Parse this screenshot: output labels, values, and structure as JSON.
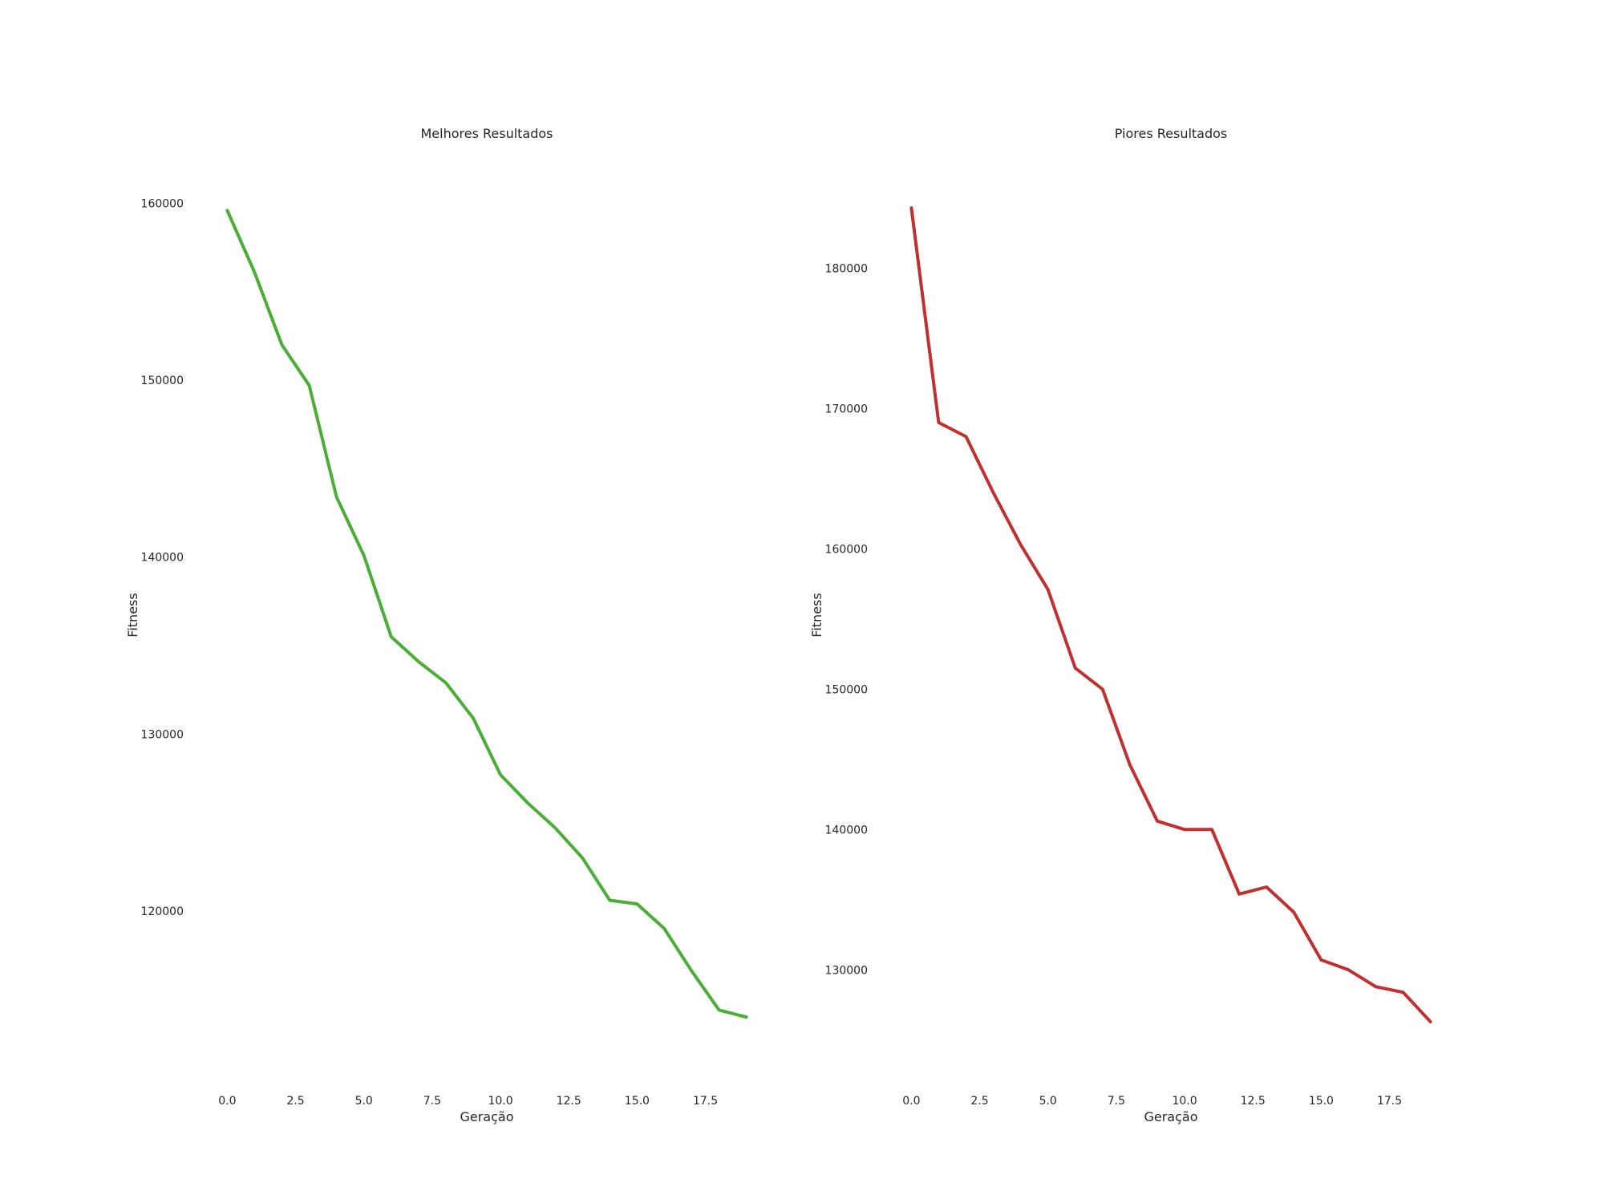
{
  "chart_data": [
    {
      "type": "line",
      "title": "Melhores Resultados",
      "xlabel": "Geração",
      "ylabel": "Fitness",
      "xlim": [
        -0.95,
        19.95
      ],
      "ylim": [
        111200,
        162200
      ],
      "xticks": [
        0.0,
        2.5,
        5.0,
        7.5,
        10.0,
        12.5,
        15.0,
        17.5
      ],
      "xtick_labels": [
        "0.0",
        "2.5",
        "5.0",
        "7.5",
        "10.0",
        "12.5",
        "15.0",
        "17.5"
      ],
      "yticks": [
        120000,
        130000,
        140000,
        150000,
        160000
      ],
      "ytick_labels": [
        "120000",
        "130000",
        "140000",
        "150000",
        "160000"
      ],
      "grid": false,
      "color": "#4aae36",
      "series": [
        {
          "name": "Melhores",
          "x": [
            0,
            1,
            2,
            3,
            4,
            5,
            6,
            7,
            8,
            9,
            10,
            11,
            12,
            13,
            14,
            15,
            16,
            17,
            18,
            19
          ],
          "values": [
            159600,
            156100,
            152000,
            149700,
            143400,
            140100,
            135500,
            134100,
            132900,
            130900,
            127700,
            126100,
            124700,
            123000,
            120600,
            120400,
            119000,
            116600,
            114400,
            114000
          ]
        }
      ]
    },
    {
      "type": "line",
      "title": "Piores Resultados",
      "xlabel": "Geração",
      "ylabel": "Fitness",
      "xlim": [
        -0.95,
        19.95
      ],
      "ylim": [
        123100,
        187400
      ],
      "xticks": [
        0.0,
        2.5,
        5.0,
        7.5,
        10.0,
        12.5,
        15.0,
        17.5
      ],
      "xtick_labels": [
        "0.0",
        "2.5",
        "5.0",
        "7.5",
        "10.0",
        "12.5",
        "15.0",
        "17.5"
      ],
      "yticks": [
        130000,
        140000,
        150000,
        160000,
        170000,
        180000
      ],
      "ytick_labels": [
        "130000",
        "140000",
        "150000",
        "160000",
        "170000",
        "180000"
      ],
      "grid": false,
      "color": "#c03030",
      "series": [
        {
          "name": "Piores",
          "x": [
            0,
            1,
            2,
            3,
            4,
            5,
            6,
            7,
            8,
            9,
            10,
            11,
            12,
            13,
            14,
            15,
            16,
            17,
            18,
            19
          ],
          "values": [
            184300,
            169000,
            168000,
            164000,
            160300,
            157100,
            151500,
            150000,
            144600,
            140600,
            140000,
            140000,
            135400,
            135900,
            134100,
            130700,
            130000,
            128800,
            128400,
            126300
          ]
        }
      ]
    }
  ]
}
